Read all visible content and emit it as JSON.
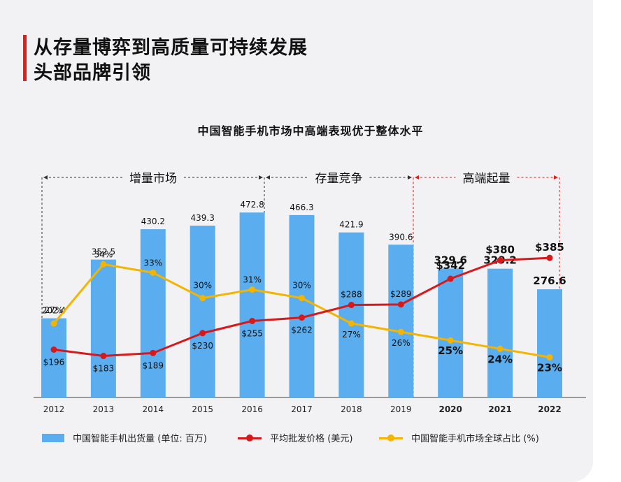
{
  "header": {
    "title_line1": "从存量博弈到高质量可持续发展",
    "title_line2": "头部品牌引领"
  },
  "chart_data": {
    "type": "bar",
    "title": "中国智能手机市场中高端表现优于整体水平",
    "categories": [
      "2012",
      "2013",
      "2014",
      "2015",
      "2016",
      "2017",
      "2018",
      "2019",
      "2020",
      "2021",
      "2022"
    ],
    "bold_categories": [
      "2020",
      "2021",
      "2022"
    ],
    "phases": [
      {
        "label": "增量市场",
        "from": "2012",
        "to": "2016",
        "color": "#333333"
      },
      {
        "label": "存量竞争",
        "from": "2016",
        "to": "2019",
        "color": "#333333"
      },
      {
        "label": "高端起量",
        "from": "2019",
        "to": "2022",
        "color": "#e31d1a"
      }
    ],
    "series": [
      {
        "name": "中国智能手机出货量 (单位: 百万)",
        "kind": "bar",
        "color": "#5aaef0",
        "values": [
          202.4,
          352.5,
          430.2,
          439.3,
          472.8,
          466.3,
          421.9,
          390.6,
          329.6,
          329.2,
          276.6
        ],
        "labels": [
          "202.4",
          "352.5",
          "430.2",
          "439.3",
          "472.8",
          "466.3",
          "421.9",
          "390.6",
          "329.6",
          "329.2",
          "276.6"
        ]
      },
      {
        "name": "平均批发价格 (美元)",
        "kind": "line",
        "color": "#d7191c",
        "values": [
          196,
          183,
          189,
          230,
          255,
          262,
          288,
          289,
          342,
          380,
          385
        ],
        "labels": [
          "$196",
          "$183",
          "$189",
          "$230",
          "$255",
          "$262",
          "$288",
          "$289",
          "$342",
          "$380",
          "$385"
        ]
      },
      {
        "name": "中国智能手机市场全球占比 (%)",
        "kind": "line",
        "color": "#f4b400",
        "values": [
          27,
          34,
          33,
          30,
          31,
          30,
          27,
          26,
          25,
          24,
          23
        ],
        "labels": [
          "27%",
          "34%",
          "33%",
          "30%",
          "31%",
          "30%",
          "27%",
          "26%",
          "25%",
          "24%",
          "23%"
        ]
      }
    ],
    "legend_position": "bottom"
  }
}
